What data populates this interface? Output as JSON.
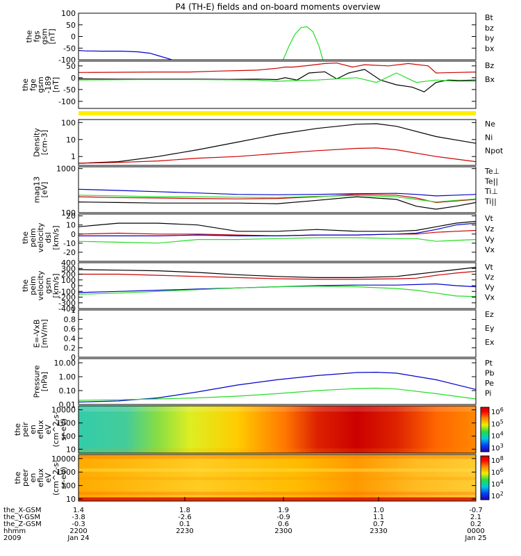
{
  "title": "P4 (TH-E) fields and on-board moments overview",
  "colors": {
    "black": "#000000",
    "red": "#cc0000",
    "green": "#22dd22",
    "blue": "#0000cc",
    "yellow": "#ffee00"
  },
  "chart_data": [
    {
      "type": "line",
      "ylabel": [
        "the",
        "fgs",
        "gsm",
        "[nT]"
      ],
      "ylim": [
        -100,
        100
      ],
      "yticks": [
        100,
        50,
        0,
        -50,
        -100
      ],
      "legend": [
        {
          "t": "Bt",
          "c": "black"
        },
        {
          "t": "bz",
          "c": "red"
        },
        {
          "t": "by",
          "c": "green"
        },
        {
          "t": "bx",
          "c": "blue"
        }
      ],
      "series": [
        {
          "c": "blue",
          "x": [
            0,
            0.02,
            0.06,
            0.11,
            0.15,
            0.18,
            0.2,
            0.22,
            0.235
          ],
          "y": [
            -60,
            -62,
            -63,
            -63,
            -66,
            -72,
            -82,
            -92,
            -100
          ]
        },
        {
          "c": "green",
          "x": [
            0.515,
            0.53,
            0.545,
            0.56,
            0.575,
            0.59,
            0.605,
            0.615
          ],
          "y": [
            -100,
            -40,
            10,
            38,
            42,
            20,
            -40,
            -100
          ]
        }
      ]
    },
    {
      "type": "line",
      "ylabel": [
        "the",
        "fge",
        "gsm",
        "-189",
        "[nT]"
      ],
      "ylim": [
        -130,
        70
      ],
      "yticks": [
        50,
        0,
        -50,
        -100
      ],
      "legend": [
        {
          "t": "Bz",
          "c": "red"
        },
        {
          "t": "Bx",
          "c": "green"
        }
      ],
      "series": [
        {
          "c": "red",
          "x": [
            0,
            0.2,
            0.28,
            0.35,
            0.4,
            0.45,
            0.5,
            0.52,
            0.54,
            0.58,
            0.62,
            0.65,
            0.69,
            0.72,
            0.78,
            0.83,
            0.88,
            0.9,
            0.95,
            1.0
          ],
          "y": [
            22,
            24,
            24,
            28,
            30,
            32,
            40,
            45,
            45,
            52,
            60,
            62,
            45,
            55,
            50,
            60,
            50,
            20,
            22,
            24
          ]
        },
        {
          "c": "black",
          "x": [
            0,
            0.1,
            0.2,
            0.3,
            0.38,
            0.45,
            0.5,
            0.52,
            0.55,
            0.58,
            0.62,
            0.65,
            0.68,
            0.72,
            0.76,
            0.8,
            0.84,
            0.87,
            0.9,
            0.93,
            0.96,
            1.0
          ],
          "y": [
            -5,
            -6,
            -6,
            -6,
            -7,
            -6,
            -8,
            0,
            -10,
            20,
            25,
            -5,
            20,
            35,
            -10,
            -30,
            -40,
            -60,
            -20,
            -10,
            -12,
            -10
          ]
        },
        {
          "c": "green",
          "x": [
            0,
            0.15,
            0.3,
            0.45,
            0.5,
            0.55,
            0.6,
            0.65,
            0.7,
            0.75,
            0.8,
            0.85,
            0.9,
            0.95,
            1.0
          ],
          "y": [
            -10,
            -8,
            -8,
            -10,
            -15,
            -12,
            -10,
            -5,
            0,
            -20,
            20,
            -20,
            -10,
            -15,
            -15
          ]
        }
      ]
    },
    {
      "type": "line",
      "ylabel": [
        "Density",
        "[cm-3]"
      ],
      "ylog": true,
      "ylim": [
        0.3,
        150
      ],
      "yticks": [
        100,
        10,
        1
      ],
      "legend": [
        {
          "t": "Ne",
          "c": "red"
        },
        {
          "t": "Ni",
          "c": "black"
        },
        {
          "t": "Npot",
          "c": "blue"
        }
      ],
      "series": [
        {
          "c": "black",
          "x": [
            0,
            0.1,
            0.2,
            0.3,
            0.4,
            0.5,
            0.6,
            0.7,
            0.75,
            0.8,
            0.9,
            1.0
          ],
          "y": [
            0.4,
            0.5,
            1.0,
            2.5,
            7,
            20,
            45,
            80,
            85,
            60,
            15,
            6
          ]
        },
        {
          "c": "red",
          "x": [
            0,
            0.1,
            0.2,
            0.3,
            0.4,
            0.5,
            0.6,
            0.7,
            0.75,
            0.8,
            0.9,
            1.0
          ],
          "y": [
            0.4,
            0.45,
            0.55,
            0.8,
            1.0,
            1.5,
            2.2,
            3.0,
            3.2,
            2.5,
            1.0,
            0.5
          ]
        }
      ]
    },
    {
      "type": "line",
      "ylabel": [
        "mag13",
        "[eV]"
      ],
      "ylog": true,
      "ylim": [
        100,
        1100
      ],
      "yticks": [
        1000,
        100
      ],
      "legend": [
        {
          "t": "Te⊥",
          "c": "red"
        },
        {
          "t": "Te||",
          "c": "black"
        },
        {
          "t": "Ti⊥",
          "c": "blue"
        },
        {
          "t": "Ti||",
          "c": "green"
        }
      ],
      "series": [
        {
          "c": "blue",
          "x": [
            0,
            0.1,
            0.2,
            0.3,
            0.4,
            0.5,
            0.6,
            0.7,
            0.8,
            0.85,
            0.9,
            0.95,
            1.0
          ],
          "y": [
            340,
            320,
            300,
            280,
            260,
            255,
            260,
            270,
            275,
            260,
            240,
            250,
            260
          ]
        },
        {
          "c": "red",
          "x": [
            0,
            0.1,
            0.2,
            0.3,
            0.4,
            0.5,
            0.6,
            0.7,
            0.8,
            0.85,
            0.9,
            0.95,
            1.0
          ],
          "y": [
            230,
            220,
            215,
            210,
            205,
            210,
            230,
            260,
            250,
            215,
            170,
            185,
            200
          ]
        },
        {
          "c": "green",
          "x": [
            0,
            0.1,
            0.2,
            0.3,
            0.4,
            0.5,
            0.6,
            0.7,
            0.8,
            0.85,
            0.9,
            0.95,
            1.0
          ],
          "y": [
            250,
            240,
            230,
            230,
            225,
            220,
            235,
            245,
            230,
            200,
            175,
            190,
            205
          ]
        },
        {
          "c": "black",
          "x": [
            0,
            0.1,
            0.2,
            0.3,
            0.4,
            0.5,
            0.6,
            0.7,
            0.8,
            0.85,
            0.9,
            0.95,
            1.0
          ],
          "y": [
            175,
            170,
            165,
            165,
            165,
            160,
            190,
            230,
            200,
            140,
            120,
            140,
            170
          ]
        }
      ]
    },
    {
      "type": "line",
      "ylabel": [
        "the",
        "peim",
        "velocity",
        "dsl",
        "[km/s]"
      ],
      "ylim": [
        -30,
        22
      ],
      "yticks": [
        20,
        10,
        0,
        -10,
        -20
      ],
      "legend": [
        {
          "t": "Vt",
          "c": "black"
        },
        {
          "t": "Vz",
          "c": "red"
        },
        {
          "t": "Vy",
          "c": "green"
        },
        {
          "t": "Vx",
          "c": "blue"
        }
      ],
      "series": [
        {
          "c": "black",
          "x": [
            0,
            0.1,
            0.2,
            0.3,
            0.4,
            0.5,
            0.6,
            0.7,
            0.8,
            0.85,
            0.9,
            0.95,
            1.0
          ],
          "y": [
            8,
            12,
            12,
            10,
            3,
            3,
            5,
            3,
            3,
            4,
            8,
            12,
            14
          ]
        },
        {
          "c": "red",
          "x": [
            0,
            0.1,
            0.2,
            0.3,
            0.4,
            0.5,
            0.6,
            0.7,
            0.8,
            0.85,
            0.9,
            0.95,
            1.0
          ],
          "y": [
            0,
            1,
            0,
            0,
            -1,
            -2,
            -1,
            -1,
            0,
            0,
            2,
            3,
            4
          ]
        },
        {
          "c": "blue",
          "x": [
            0,
            0.1,
            0.2,
            0.3,
            0.4,
            0.5,
            0.6,
            0.7,
            0.8,
            0.85,
            0.9,
            0.95,
            1.0
          ],
          "y": [
            -2,
            -2,
            -2,
            -1,
            -2,
            -2,
            -1,
            -1,
            0,
            1,
            5,
            10,
            12
          ]
        },
        {
          "c": "green",
          "x": [
            0,
            0.1,
            0.2,
            0.3,
            0.4,
            0.5,
            0.6,
            0.7,
            0.8,
            0.85,
            0.9,
            0.95,
            1.0
          ],
          "y": [
            -8,
            -9,
            -10,
            -6,
            -6,
            -5,
            -4,
            -4,
            -5,
            -5,
            -8,
            -7,
            -6
          ]
        }
      ]
    },
    {
      "type": "line",
      "ylabel": [
        "the",
        "peim",
        "velocity",
        "gsm",
        "[km/s]"
      ],
      "ylim": [
        -400,
        400
      ],
      "yticks": [
        400,
        300,
        200,
        100,
        0,
        -100,
        -200,
        -300,
        -400
      ],
      "legend": [
        {
          "t": "Vt",
          "c": "black"
        },
        {
          "t": "Vz",
          "c": "red"
        },
        {
          "t": "Vy",
          "c": "green"
        },
        {
          "t": "Vx",
          "c": "blue"
        }
      ],
      "series": [
        {
          "c": "black",
          "x": [
            0,
            0.1,
            0.2,
            0.3,
            0.4,
            0.5,
            0.6,
            0.7,
            0.8,
            0.85,
            0.9,
            0.95,
            1.0
          ],
          "y": [
            280,
            270,
            260,
            230,
            190,
            160,
            140,
            140,
            160,
            200,
            240,
            280,
            320
          ]
        },
        {
          "c": "red",
          "x": [
            0,
            0.1,
            0.2,
            0.3,
            0.4,
            0.5,
            0.6,
            0.7,
            0.8,
            0.85,
            0.9,
            0.95,
            1.0
          ],
          "y": [
            200,
            200,
            180,
            160,
            140,
            120,
            110,
            110,
            120,
            130,
            180,
            220,
            250
          ]
        },
        {
          "c": "blue",
          "x": [
            0,
            0.1,
            0.2,
            0.3,
            0.4,
            0.5,
            0.6,
            0.7,
            0.8,
            0.85,
            0.9,
            0.95,
            1.0
          ],
          "y": [
            -120,
            -100,
            -80,
            -60,
            -40,
            -20,
            0,
            10,
            10,
            20,
            30,
            0,
            -20
          ]
        },
        {
          "c": "green",
          "x": [
            0,
            0.1,
            0.2,
            0.3,
            0.4,
            0.5,
            0.6,
            0.7,
            0.8,
            0.85,
            0.9,
            0.95,
            1.0
          ],
          "y": [
            -150,
            -130,
            -100,
            -70,
            -40,
            -20,
            -10,
            -20,
            -50,
            -80,
            -130,
            -180,
            -190
          ]
        }
      ]
    },
    {
      "type": "line",
      "ylabel": [
        "E=-VxB",
        "[mV/m]"
      ],
      "ylim": [
        0,
        1
      ],
      "yticks": [
        1.0,
        0.8,
        0.6,
        0.4,
        0.2,
        0.0
      ],
      "legend": [
        {
          "t": "Ez",
          "c": "red"
        },
        {
          "t": "Ey",
          "c": "green"
        },
        {
          "t": "Ex",
          "c": "blue"
        }
      ],
      "series": []
    },
    {
      "type": "line",
      "ylabel": [
        "Pressure",
        "[nPa]"
      ],
      "ylog": true,
      "ylim": [
        0.01,
        20
      ],
      "yticks": [
        10.0,
        1.0,
        0.1,
        0.01
      ],
      "tickLabels": [
        "10.00",
        "1.00",
        "0.10",
        "0.01"
      ],
      "legend": [
        {
          "t": "Pt",
          "c": "black"
        },
        {
          "t": "Pb",
          "c": "red"
        },
        {
          "t": "Pe",
          "c": "green"
        },
        {
          "t": "Pi",
          "c": "blue"
        }
      ],
      "series": [
        {
          "c": "blue",
          "x": [
            0,
            0.1,
            0.2,
            0.3,
            0.4,
            0.5,
            0.6,
            0.7,
            0.75,
            0.8,
            0.9,
            1.0
          ],
          "y": [
            0.015,
            0.018,
            0.03,
            0.08,
            0.25,
            0.6,
            1.2,
            2.0,
            2.1,
            1.8,
            0.6,
            0.12
          ]
        },
        {
          "c": "green",
          "x": [
            0,
            0.1,
            0.2,
            0.3,
            0.4,
            0.5,
            0.6,
            0.7,
            0.75,
            0.8,
            0.9,
            1.0
          ],
          "y": [
            0.02,
            0.022,
            0.025,
            0.03,
            0.04,
            0.06,
            0.1,
            0.14,
            0.15,
            0.13,
            0.06,
            0.025
          ]
        }
      ]
    },
    {
      "type": "heatmap",
      "ylabel": [
        "the",
        "peir",
        "en",
        "eflux",
        "eV",
        "(cm^2-s-",
        "sr-eV)"
      ],
      "ylog": true,
      "ylim": [
        5,
        20000
      ],
      "yticks": [
        10000,
        1000,
        100,
        10
      ],
      "colorbar": {
        "ticks": [
          "10^6",
          "10^5",
          "10^4",
          "10^3"
        ]
      }
    },
    {
      "type": "heatmap",
      "ylabel": [
        "the",
        "peer",
        "en",
        "eflux",
        "eV",
        "(cm^2-s-",
        "sr-eV)"
      ],
      "ylog": true,
      "ylim": [
        7,
        20000
      ],
      "yticks": [
        10000,
        1000,
        100,
        10
      ],
      "colorbar": {
        "ticks": [
          "10^8",
          "10^6",
          "10^4",
          "10^2"
        ]
      }
    }
  ],
  "xaxis": {
    "rows": [
      {
        "label": "the_X-GSM",
        "vals": [
          "1.4",
          "1.8",
          "1.9",
          "1.0",
          "-0.7"
        ]
      },
      {
        "label": "the_Y-GSM",
        "vals": [
          "-3.8",
          "-2.6",
          "-0.9",
          "1.1",
          "2.1"
        ]
      },
      {
        "label": "the_Z-GSM",
        "vals": [
          "-0.3",
          "0.1",
          "0.6",
          "0.7",
          "0.2"
        ]
      },
      {
        "label": "hhmm",
        "vals": [
          "2200",
          "2230",
          "2300",
          "2330",
          "0000"
        ]
      },
      {
        "label": "2009",
        "vals": [
          "Jan 24",
          "",
          "",
          "",
          "Jan 25"
        ]
      }
    ]
  }
}
